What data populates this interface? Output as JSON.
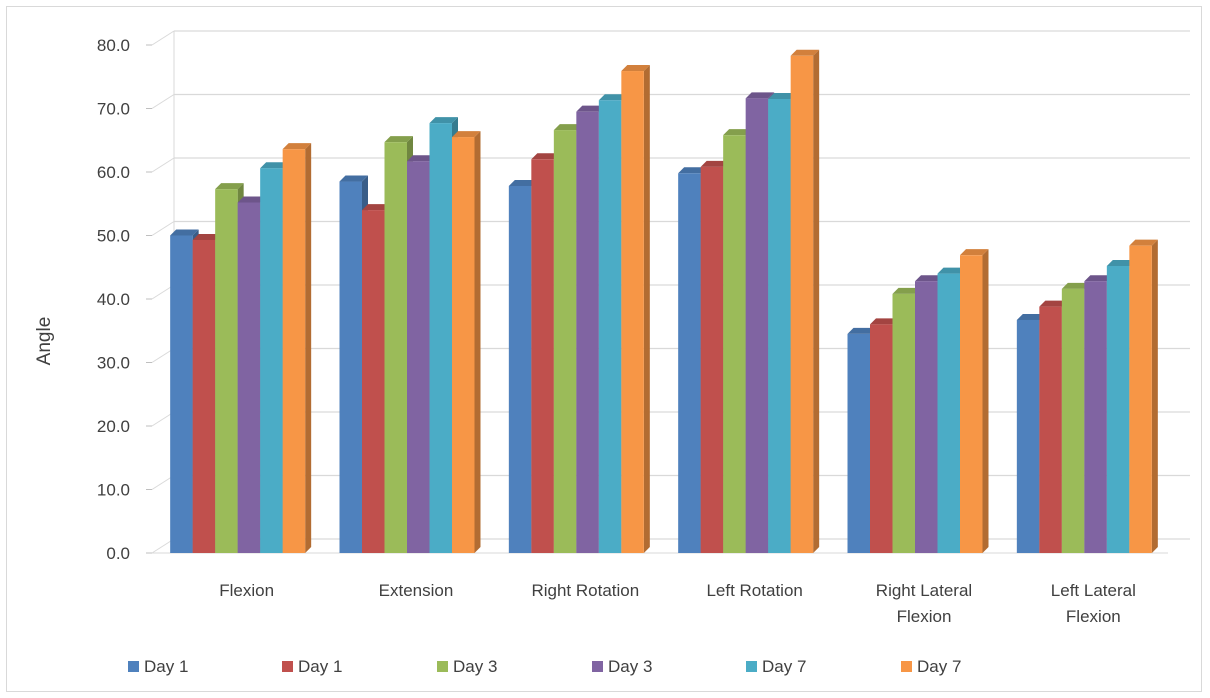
{
  "chart_data": {
    "type": "bar",
    "title": "",
    "xlabel": "",
    "ylabel": "Angle",
    "ylim": [
      0,
      80
    ],
    "ytick_step": 10,
    "ytick_labels": [
      "0.0",
      "10.0",
      "20.0",
      "30.0",
      "40.0",
      "50.0",
      "60.0",
      "70.0",
      "80.0"
    ],
    "grid": true,
    "legend_position": "bottom",
    "style": "3d-clustered-column",
    "categories": [
      [
        "Flexion"
      ],
      [
        "Extension"
      ],
      [
        "Right Rotation"
      ],
      [
        "Left Rotation"
      ],
      [
        "Right Lateral",
        "Flexion"
      ],
      [
        "Left Lateral",
        "Flexion"
      ]
    ],
    "series": [
      {
        "name": "Day 1",
        "color": "#4f81bd",
        "values": [
          50.0,
          58.5,
          57.8,
          59.8,
          34.5,
          36.7
        ]
      },
      {
        "name": "Day 1",
        "color": "#c0504d",
        "values": [
          49.3,
          54.0,
          62.0,
          60.8,
          36.0,
          38.8
        ]
      },
      {
        "name": "Day 3",
        "color": "#9bbb59",
        "values": [
          57.3,
          64.7,
          66.6,
          65.8,
          40.8,
          41.6
        ]
      },
      {
        "name": "Day 3",
        "color": "#8064a2",
        "values": [
          55.2,
          61.7,
          69.5,
          71.6,
          42.8,
          42.8
        ]
      },
      {
        "name": "Day 7",
        "color": "#4bacc6",
        "values": [
          60.6,
          67.7,
          71.3,
          71.5,
          44.0,
          45.2
        ]
      },
      {
        "name": "Day 7",
        "color": "#f79646",
        "values": [
          63.6,
          65.5,
          75.9,
          78.3,
          46.9,
          48.4
        ]
      }
    ]
  }
}
